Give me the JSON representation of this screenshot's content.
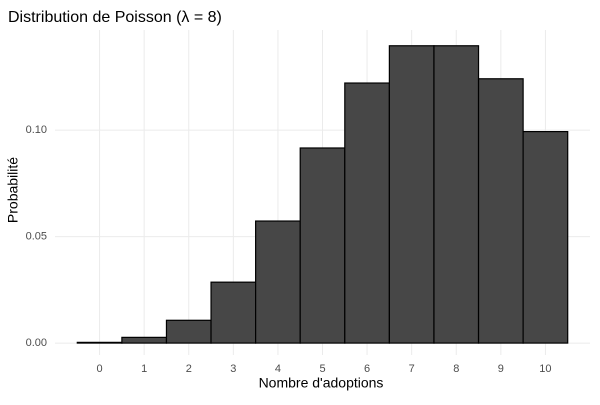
{
  "chart_data": {
    "type": "bar",
    "title": "Distribution de Poisson (λ = 8)",
    "x_label": "Nombre d'adoptions",
    "y_label": "Probabilité",
    "categories": [
      "0",
      "1",
      "2",
      "3",
      "4",
      "5",
      "6",
      "7",
      "8",
      "9",
      "10"
    ],
    "values": [
      0.000335,
      0.00268,
      0.0107,
      0.0286,
      0.0573,
      0.0916,
      0.1221,
      0.1396,
      0.1396,
      0.1241,
      0.0993
    ],
    "color": "#474747",
    "ylim": [
      -0.0056,
      0.147
    ],
    "yticks": [
      {
        "value": 0,
        "label": "0.00"
      },
      {
        "value": 0.05,
        "label": "0.05"
      },
      {
        "value": 0.1,
        "label": "0.10"
      }
    ],
    "grid": true
  }
}
